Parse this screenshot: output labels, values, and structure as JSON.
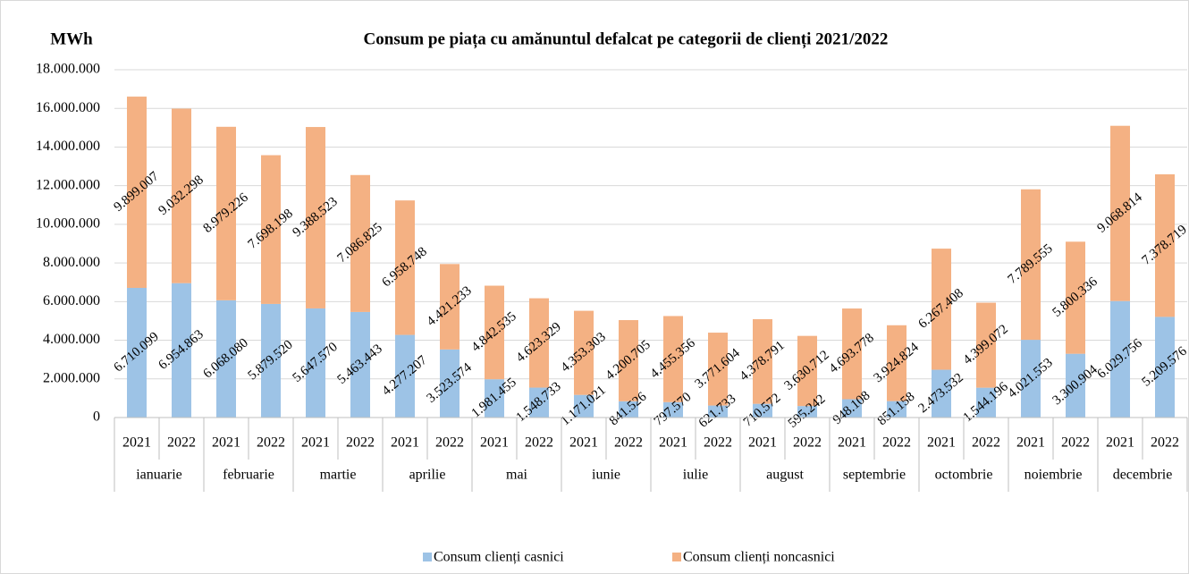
{
  "chart_data": {
    "type": "stacked_bar",
    "title": "Consum pe piața cu amănuntul defalcat pe categorii de clienți 2021/2022",
    "y_label": "MWh",
    "categories": [
      "2021",
      "2022",
      "2021",
      "2022",
      "2021",
      "2022",
      "2021",
      "2022",
      "2021",
      "2022",
      "2021",
      "2022",
      "2021",
      "2022",
      "2021",
      "2022",
      "2021",
      "2022",
      "2021",
      "2022",
      "2021",
      "2022",
      "2021",
      "2022"
    ],
    "groups": [
      "ianuarie",
      "februarie",
      "martie",
      "aprilie",
      "mai",
      "iunie",
      "iulie",
      "august",
      "septembrie",
      "octombrie",
      "noiembrie",
      "decembrie"
    ],
    "series": [
      {
        "name": "Consum clienți casnici",
        "color": "#9dc3e6",
        "values": [
          6710099,
          6954863,
          6068080,
          5879520,
          5647570,
          5463443,
          4277207,
          3523574,
          1981455,
          1548733,
          1171021,
          841526,
          797570,
          621733,
          710572,
          595242,
          948108,
          851158,
          2473532,
          1544196,
          4021553,
          3300904,
          6029756,
          5209576
        ],
        "value_labels": [
          "6.710.099",
          "6.954.863",
          "6.068.080",
          "5.879.520",
          "5.647.570",
          "5.463.443",
          "4.277.207",
          "3.523.574",
          "1.981.455",
          "1.548.733",
          "1.171.021",
          "841.526",
          "797.570",
          "621.733",
          "710.572",
          "595.242",
          "948.108",
          "851.158",
          "2.473.532",
          "1.544.196",
          "4.021.553",
          "3.300.904",
          "6.029.756",
          "5.209.576"
        ]
      },
      {
        "name": "Consum clienți noncasnici",
        "color": "#f4b183",
        "values": [
          9899007,
          9032298,
          8979226,
          7698198,
          9388523,
          7086825,
          6958748,
          4421233,
          4842535,
          4623329,
          4353303,
          4200705,
          4455356,
          3771604,
          4378791,
          3630712,
          4693778,
          3924824,
          6267408,
          4399072,
          7789555,
          5800336,
          9068814,
          7378719
        ],
        "value_labels": [
          "9.899.007",
          "9.032.298",
          "8.979.226",
          "7.698.198",
          "9.388.523",
          "7.086.825",
          "6.958.748",
          "4.421.233",
          "4.842.535",
          "4.623.329",
          "4.353.303",
          "4.200.705",
          "4.455.356",
          "3.771.604",
          "4.378.791",
          "3.630.712",
          "4.693.778",
          "3.924.824",
          "6.267.408",
          "4.399.072",
          "7.789.555",
          "5.800.336",
          "9.068.814",
          "7.378.719"
        ]
      }
    ],
    "ylim": [
      0,
      18000000
    ],
    "yticks": [
      0,
      {
        "value": 2000000,
        "label": "2.000.000"
      },
      {
        "value": 4000000,
        "label": "4.000.000"
      },
      {
        "value": 6000000,
        "label": "6.000.000"
      },
      {
        "value": 8000000,
        "label": "8.000.000"
      },
      {
        "value": 10000000,
        "label": "10.000.000"
      },
      {
        "value": 12000000,
        "label": "12.000.000"
      },
      {
        "value": 14000000,
        "label": "14.000.000"
      },
      {
        "value": 16000000,
        "label": "16.000.000"
      },
      {
        "value": 18000000,
        "label": "18.000.000"
      }
    ],
    "grid": true,
    "legend": "bottom"
  }
}
